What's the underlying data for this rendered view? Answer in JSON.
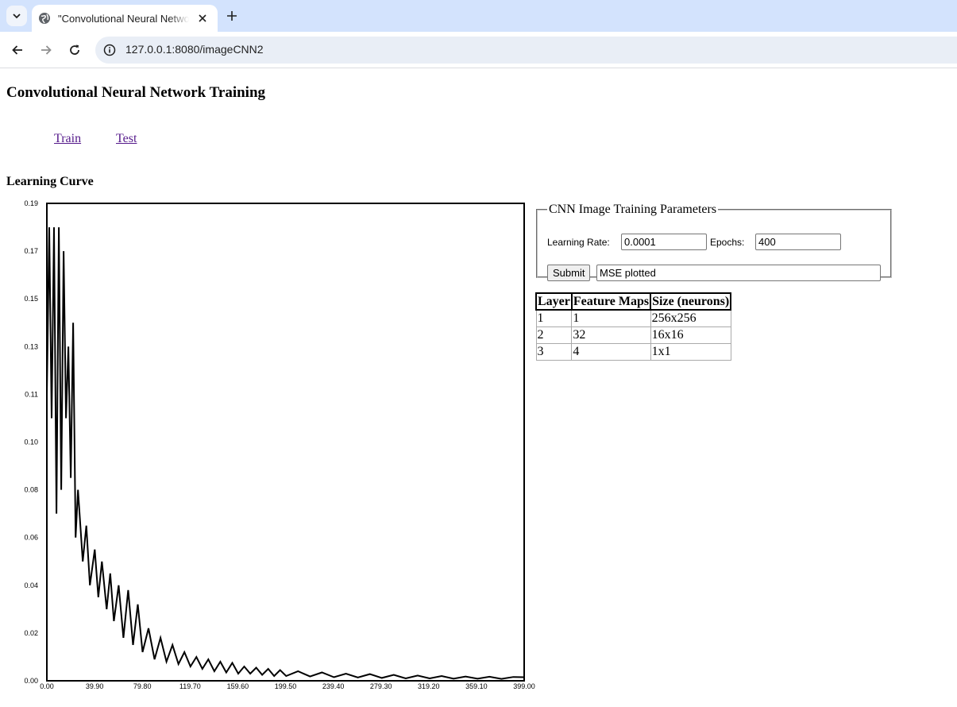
{
  "browser": {
    "tab_title": "\"Convolutional Neural Network Training\"",
    "url": "127.0.0.1:8080/imageCNN2"
  },
  "page": {
    "title": "Convolutional Neural Network Training",
    "links": [
      "Train",
      "Test"
    ],
    "section_title": "Learning Curve"
  },
  "form": {
    "legend": "CNN Image Training Parameters",
    "learning_rate_label": "Learning Rate:",
    "learning_rate": "0.0001",
    "epochs_label": "Epochs:",
    "epochs": "400",
    "submit_label": "Submit",
    "status": "MSE plotted"
  },
  "layers_table": {
    "headers": [
      "Layer",
      "Feature Maps",
      "Size (neurons)"
    ],
    "rows": [
      [
        "1",
        "1",
        "256x256"
      ],
      [
        "2",
        "32",
        "16x16"
      ],
      [
        "3",
        "4",
        "1x1"
      ]
    ]
  },
  "chart_data": {
    "type": "line",
    "title": "Learning Curve",
    "xlabel": "",
    "ylabel": "",
    "xlim": [
      0,
      399
    ],
    "ylim": [
      0,
      0.2
    ],
    "x_ticks": [
      "0.00",
      "39.90",
      "79.80",
      "119.70",
      "159.60",
      "199.50",
      "239.40",
      "279.30",
      "319.20",
      "359.10",
      "399.00"
    ],
    "y_ticks": [
      "0.00",
      "0.02",
      "0.04",
      "0.06",
      "0.08",
      "0.10",
      "0.11",
      "0.13",
      "0.15",
      "0.17",
      "0.19"
    ],
    "grid": false,
    "legend": "none",
    "series": [
      {
        "color": "#000000",
        "x": [
          0,
          2,
          4,
          6,
          8,
          10,
          12,
          14,
          16,
          18,
          20,
          22,
          24,
          26,
          28,
          30,
          33,
          36,
          40,
          43,
          46,
          50,
          53,
          56,
          60,
          64,
          68,
          72,
          76,
          80,
          85,
          90,
          95,
          100,
          105,
          110,
          115,
          120,
          125,
          130,
          135,
          140,
          145,
          150,
          155,
          160,
          165,
          170,
          175,
          180,
          185,
          190,
          195,
          200,
          210,
          220,
          230,
          240,
          250,
          260,
          270,
          280,
          290,
          300,
          310,
          320,
          330,
          340,
          350,
          360,
          370,
          380,
          390,
          399
        ],
        "y": [
          0.12,
          0.19,
          0.11,
          0.19,
          0.07,
          0.19,
          0.08,
          0.18,
          0.11,
          0.14,
          0.085,
          0.15,
          0.06,
          0.08,
          0.065,
          0.05,
          0.065,
          0.04,
          0.055,
          0.035,
          0.05,
          0.03,
          0.045,
          0.025,
          0.04,
          0.018,
          0.038,
          0.015,
          0.032,
          0.012,
          0.022,
          0.009,
          0.018,
          0.008,
          0.015,
          0.007,
          0.012,
          0.006,
          0.01,
          0.005,
          0.009,
          0.004,
          0.008,
          0.0035,
          0.0075,
          0.003,
          0.006,
          0.003,
          0.0055,
          0.0025,
          0.005,
          0.002,
          0.0045,
          0.002,
          0.004,
          0.0018,
          0.0035,
          0.0015,
          0.003,
          0.0014,
          0.0028,
          0.0012,
          0.0025,
          0.001,
          0.0022,
          0.001,
          0.002,
          0.0009,
          0.0018,
          0.0009,
          0.0017,
          0.0008,
          0.0016,
          0.0015
        ]
      }
    ]
  }
}
